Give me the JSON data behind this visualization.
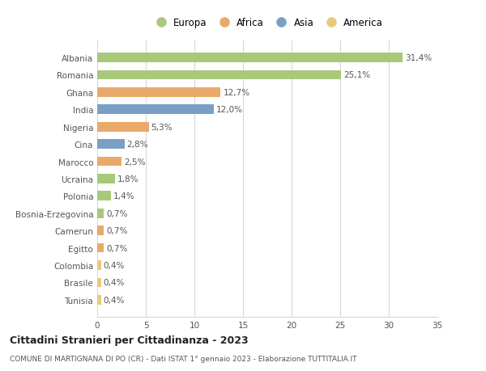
{
  "categories": [
    "Tunisia",
    "Brasile",
    "Colombia",
    "Egitto",
    "Camerun",
    "Bosnia-Erzegovina",
    "Polonia",
    "Ucraina",
    "Marocco",
    "Cina",
    "Nigeria",
    "India",
    "Ghana",
    "Romania",
    "Albania"
  ],
  "values": [
    0.4,
    0.4,
    0.4,
    0.7,
    0.7,
    0.7,
    1.4,
    1.8,
    2.5,
    2.8,
    5.3,
    12.0,
    12.7,
    25.1,
    31.4
  ],
  "colors": [
    "#e8c97a",
    "#e8c97a",
    "#e8c97a",
    "#e8a96a",
    "#e8a96a",
    "#a8c87a",
    "#a8c87a",
    "#a8c87a",
    "#e8a96a",
    "#7a9fc4",
    "#e8a96a",
    "#7a9fc4",
    "#e8a96a",
    "#a8c87a",
    "#a8c87a"
  ],
  "labels": [
    "0,4%",
    "0,4%",
    "0,4%",
    "0,7%",
    "0,7%",
    "0,7%",
    "1,4%",
    "1,8%",
    "2,5%",
    "2,8%",
    "5,3%",
    "12,0%",
    "12,7%",
    "25,1%",
    "31,4%"
  ],
  "legend": [
    {
      "label": "Europa",
      "color": "#a8c87a"
    },
    {
      "label": "Africa",
      "color": "#e8a96a"
    },
    {
      "label": "Asia",
      "color": "#7a9fc4"
    },
    {
      "label": "America",
      "color": "#e8c97a"
    }
  ],
  "xlim": [
    0,
    35
  ],
  "xticks": [
    0,
    5,
    10,
    15,
    20,
    25,
    30,
    35
  ],
  "title": "Cittadini Stranieri per Cittadinanza - 2023",
  "subtitle": "COMUNE DI MARTIGNANA DI PO (CR) - Dati ISTAT 1° gennaio 2023 - Elaborazione TUTTITALIA.IT",
  "bar_height": 0.55,
  "background_color": "#ffffff",
  "grid_color": "#d8d8d8",
  "label_fontsize": 7.5,
  "tick_fontsize": 7.5,
  "ytick_fontsize": 7.5
}
